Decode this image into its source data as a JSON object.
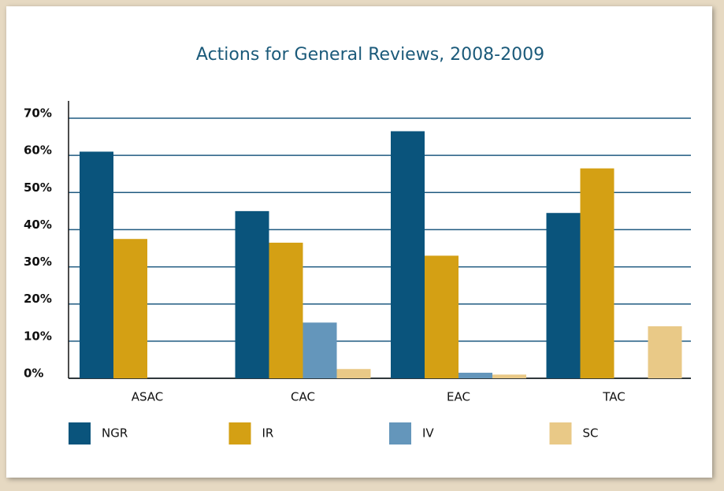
{
  "chart_data": {
    "type": "bar",
    "title": "Actions for General Reviews, 2008-2009",
    "categories": [
      "ASAC",
      "CAC",
      "EAC",
      "TAC"
    ],
    "series": [
      {
        "name": "NGR",
        "color": "#0a547c",
        "values": [
          61,
          45,
          66.5,
          44.5
        ]
      },
      {
        "name": "IR",
        "color": "#d4a014",
        "values": [
          37.5,
          36.5,
          33,
          56.5
        ]
      },
      {
        "name": "IV",
        "color": "#6496bb",
        "values": [
          0,
          15,
          1.5,
          0
        ]
      },
      {
        "name": "SC",
        "color": "#e9c987",
        "values": [
          0,
          2.5,
          1,
          14
        ]
      }
    ],
    "ylim": [
      0,
      70
    ],
    "yticks": [
      {
        "value": 0,
        "label": "0%"
      },
      {
        "value": 10,
        "label": "10%"
      },
      {
        "value": 20,
        "label": "20%"
      },
      {
        "value": 30,
        "label": "30%"
      },
      {
        "value": 40,
        "label": "40%"
      },
      {
        "value": 50,
        "label": "50%"
      },
      {
        "value": 60,
        "label": "60%"
      },
      {
        "value": 70,
        "label": "70%"
      }
    ],
    "grid": true
  }
}
